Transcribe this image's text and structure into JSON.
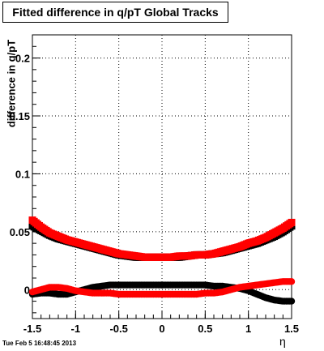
{
  "chart_data": {
    "type": "scatter",
    "title": "Fitted difference in q/pT  Global Tracks",
    "xlabel": "η",
    "ylabel": "difference in q/pT",
    "xlim": [
      -1.5,
      1.5
    ],
    "ylim": [
      -0.025,
      0.22
    ],
    "x_ticks": [
      "-1.5",
      "-1",
      "-0.5",
      "0",
      "0.5",
      "1",
      "1.5"
    ],
    "y_ticks": [
      "0",
      "0.05",
      "0.1",
      "0.15",
      "0.2"
    ],
    "grid": true,
    "series": [
      {
        "color": "#000000",
        "marker": "square",
        "x": [
          -1.5,
          -1.4,
          -1.3,
          -1.2,
          -1.1,
          -1.0,
          -0.9,
          -0.8,
          -0.7,
          -0.6,
          -0.5,
          -0.4,
          -0.3,
          -0.2,
          -0.1,
          0.0,
          0.1,
          0.2,
          0.3,
          0.4,
          0.5,
          0.6,
          0.7,
          0.8,
          0.9,
          1.0,
          1.1,
          1.2,
          1.3,
          1.4,
          1.5
        ],
        "y": [
          0.055,
          0.051,
          0.047,
          0.044,
          0.042,
          0.04,
          0.038,
          0.036,
          0.034,
          0.032,
          0.03,
          0.029,
          0.028,
          0.028,
          0.028,
          0.028,
          0.028,
          0.028,
          0.029,
          0.03,
          0.03,
          0.031,
          0.032,
          0.034,
          0.036,
          0.038,
          0.04,
          0.043,
          0.046,
          0.05,
          0.055
        ]
      },
      {
        "color": "#ff0000",
        "marker": "square",
        "x": [
          -1.5,
          -1.4,
          -1.3,
          -1.2,
          -1.1,
          -1.0,
          -0.9,
          -0.8,
          -0.7,
          -0.6,
          -0.5,
          -0.4,
          -0.3,
          -0.2,
          -0.1,
          0.0,
          0.1,
          0.2,
          0.3,
          0.4,
          0.5,
          0.6,
          0.7,
          0.8,
          0.9,
          1.0,
          1.1,
          1.2,
          1.3,
          1.4,
          1.5
        ],
        "y": [
          0.06,
          0.054,
          0.049,
          0.046,
          0.043,
          0.041,
          0.039,
          0.037,
          0.035,
          0.033,
          0.031,
          0.03,
          0.029,
          0.028,
          0.028,
          0.028,
          0.028,
          0.029,
          0.029,
          0.03,
          0.03,
          0.031,
          0.033,
          0.035,
          0.037,
          0.04,
          0.042,
          0.045,
          0.049,
          0.053,
          0.058
        ]
      },
      {
        "color": "#000000",
        "marker": "circle",
        "x": [
          -1.5,
          -1.4,
          -1.3,
          -1.2,
          -1.1,
          -1.0,
          -0.9,
          -0.8,
          -0.7,
          -0.6,
          -0.5,
          -0.4,
          -0.3,
          -0.2,
          -0.1,
          0.0,
          0.1,
          0.2,
          0.3,
          0.4,
          0.5,
          0.6,
          0.7,
          0.8,
          0.9,
          1.0,
          1.1,
          1.2,
          1.3,
          1.4,
          1.5
        ],
        "y": [
          -0.004,
          -0.003,
          -0.003,
          -0.004,
          -0.004,
          -0.002,
          0.0,
          0.002,
          0.003,
          0.004,
          0.004,
          0.004,
          0.004,
          0.004,
          0.004,
          0.004,
          0.004,
          0.004,
          0.004,
          0.004,
          0.004,
          0.003,
          0.003,
          0.002,
          0.001,
          -0.001,
          -0.004,
          -0.007,
          -0.009,
          -0.01,
          -0.01
        ]
      },
      {
        "color": "#ff0000",
        "marker": "circle",
        "x": [
          -1.5,
          -1.4,
          -1.3,
          -1.2,
          -1.1,
          -1.0,
          -0.9,
          -0.8,
          -0.7,
          -0.6,
          -0.5,
          -0.4,
          -0.3,
          -0.2,
          -0.1,
          0.0,
          0.1,
          0.2,
          0.3,
          0.4,
          0.5,
          0.6,
          0.7,
          0.8,
          0.9,
          1.0,
          1.1,
          1.2,
          1.3,
          1.4,
          1.5
        ],
        "y": [
          -0.002,
          0.0,
          0.002,
          0.002,
          0.001,
          -0.001,
          -0.002,
          -0.003,
          -0.003,
          -0.003,
          -0.004,
          -0.004,
          -0.004,
          -0.004,
          -0.004,
          -0.004,
          -0.004,
          -0.004,
          -0.004,
          -0.004,
          -0.003,
          -0.003,
          -0.002,
          0.0,
          0.002,
          0.003,
          0.004,
          0.005,
          0.006,
          0.007,
          0.007
        ]
      }
    ]
  },
  "footer_text": "Tue Feb  5 16:48:45 2013"
}
